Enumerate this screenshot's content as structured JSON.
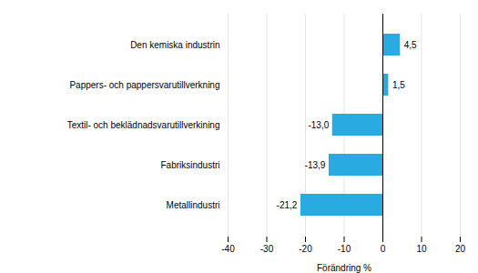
{
  "chart_data": {
    "type": "bar",
    "orientation": "horizontal",
    "categories": [
      "Metallindustri",
      "Fabriksindustri",
      "Textil- och beklädnadsvarutillverkining",
      "Pappers- och pappersvarutillverkning",
      "Den kemiska industrin"
    ],
    "values": [
      -21.2,
      -13.9,
      -13.0,
      1.5,
      4.5
    ],
    "value_labels": [
      "-21,2",
      "-13,9",
      "-13,0",
      "1,5",
      "4,5"
    ],
    "data_labels": true,
    "color": "#29abe2",
    "xlabel": "Förändring %",
    "xlim": [
      -40,
      20
    ],
    "xticks": [
      -40,
      -30,
      -20,
      -10,
      0,
      10,
      20
    ],
    "grid": true
  }
}
